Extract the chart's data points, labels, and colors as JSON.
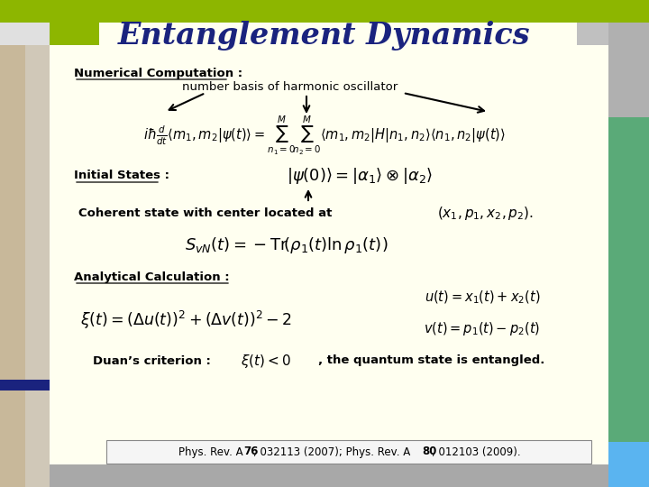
{
  "title": "Entanglement Dynamics",
  "title_color": "#1a237e",
  "bg_color": "#fffff0",
  "slide_bg": "#a8a8a8",
  "numerical_label": "Numerical Computation :",
  "number_basis_label": "number basis of harmonic oscillator",
  "initial_states_label": "Initial States :",
  "coherent_label": "Coherent state with center located at",
  "analytical_label": "Analytical Calculation :",
  "duans_label": "Duan’s criterion :",
  "duans_text": ", the quantum state is entangled.",
  "green_color": "#8db600",
  "blue_bar_color": "#1a237e",
  "teal_color": "#5aaa78",
  "tan_color": "#c8b89a",
  "light_blue": "#5ab4f0",
  "ref_text1": "Phys. Rev. A ",
  "ref_bold1": "76",
  "ref_text2": ", 032113 (2007); Phys. Rev. A ",
  "ref_bold2": "80",
  "ref_text3": ", 012103 (2009)."
}
